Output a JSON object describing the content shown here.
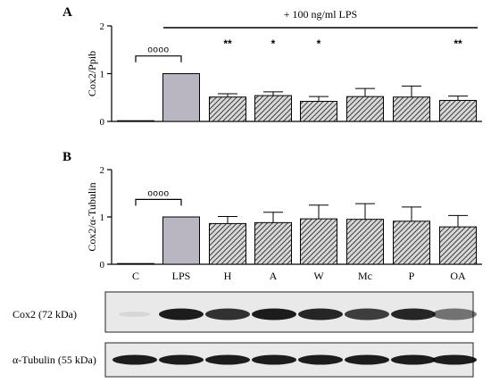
{
  "figure": {
    "panel_a_letter": "A",
    "panel_b_letter": "B",
    "treatment_label": "+ 100 ng/ml LPS",
    "blot_labels": [
      "Cox2 (72 kDa)",
      "α-Tubulin (55 kDa)"
    ],
    "colors": {
      "control_bar": "#ffffff",
      "lps_bar": "#b9b6c2",
      "hatched_bar": "#9e9e9e",
      "axis": "#000000"
    }
  },
  "chart_data": [
    {
      "type": "bar",
      "panel": "A",
      "ylabel": "Cox2/Ppib",
      "ylim": [
        0,
        2
      ],
      "yticks": [
        0,
        1,
        2
      ],
      "categories": [
        "C",
        "LPS",
        "H",
        "A",
        "W",
        "Mc",
        "P",
        "OA"
      ],
      "values": [
        0.01,
        1.0,
        0.51,
        0.54,
        0.42,
        0.52,
        0.51,
        0.44
      ],
      "errors": [
        0,
        0,
        0.07,
        0.08,
        0.1,
        0.17,
        0.23,
        0.09
      ],
      "significance": [
        "",
        "oooo",
        "**",
        "*",
        "*",
        "",
        "",
        "**"
      ],
      "grid": false
    },
    {
      "type": "bar",
      "panel": "B",
      "ylabel": "Cox2/α-Tubulin",
      "ylim": [
        0,
        2
      ],
      "yticks": [
        0,
        1,
        2
      ],
      "categories": [
        "C",
        "LPS",
        "H",
        "A",
        "W",
        "Mc",
        "P",
        "OA"
      ],
      "values": [
        0.0,
        1.0,
        0.86,
        0.88,
        0.96,
        0.95,
        0.91,
        0.79
      ],
      "errors": [
        0,
        0,
        0.15,
        0.22,
        0.29,
        0.33,
        0.3,
        0.24
      ],
      "significance": [
        "",
        "oooo",
        "",
        "",
        "",
        "",
        "",
        ""
      ],
      "grid": false
    }
  ]
}
